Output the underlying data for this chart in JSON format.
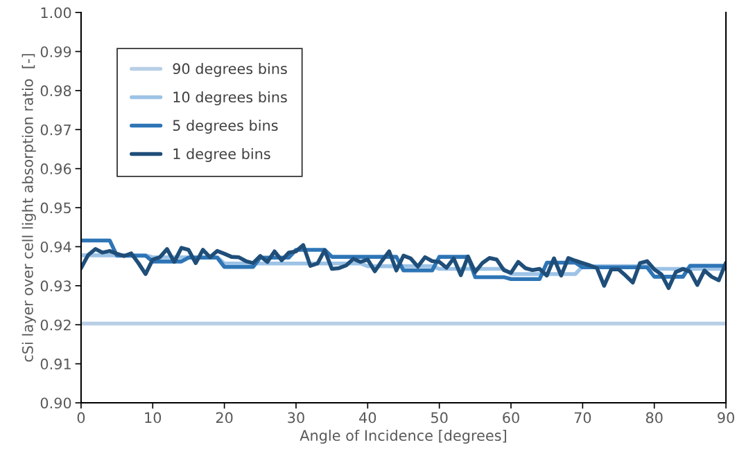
{
  "chart_data": {
    "type": "line",
    "xlabel": "Angle of Incidence [degrees]",
    "ylabel": "cSi layer over cell light absorption ratio  [-]",
    "xlim": [
      0,
      90
    ],
    "xticks": [
      0,
      10,
      20,
      30,
      40,
      50,
      60,
      70,
      80,
      90
    ],
    "ylim": [
      0.9,
      1.0
    ],
    "yticks": [
      {
        "value": 0.9,
        "label": "0.90"
      },
      {
        "value": 0.91,
        "label": "0.91"
      },
      {
        "value": 0.92,
        "label": "0.92"
      },
      {
        "value": 0.93,
        "label": "0.93"
      },
      {
        "value": 0.94,
        "label": "0.94"
      },
      {
        "value": 0.95,
        "label": "0.95"
      },
      {
        "value": 0.96,
        "label": "0.96"
      },
      {
        "value": 0.97,
        "label": "0.97"
      },
      {
        "value": 0.98,
        "label": "0.98"
      },
      {
        "value": 0.99,
        "label": "0.99"
      },
      {
        "value": 1.0,
        "label": "1.00"
      }
    ],
    "grid": false,
    "legend": "top left",
    "marker": "none",
    "line_style": "solid",
    "series": [
      {
        "name": "90 degrees bins",
        "color": "#b8cfe6",
        "x": [
          0,
          90
        ],
        "values": [
          0.9203,
          0.9203
        ]
      },
      {
        "name": "10 degrees bins",
        "color": "#9dc3e6",
        "x": [
          0,
          9,
          10,
          19,
          20,
          29,
          30,
          39,
          40,
          49,
          50,
          59,
          60,
          69,
          70,
          79,
          80,
          90
        ],
        "values": [
          0.9378,
          0.9378,
          0.9373,
          0.9373,
          0.9357,
          0.9357,
          0.9357,
          0.9357,
          0.935,
          0.935,
          0.9343,
          0.9343,
          0.933,
          0.933,
          0.935,
          0.935,
          0.9343,
          0.9343
        ]
      },
      {
        "name": "5 degrees bins",
        "color": "#2e75b6",
        "x": [
          0,
          4,
          5,
          9,
          10,
          14,
          15,
          19,
          20,
          24,
          25,
          29,
          30,
          34,
          35,
          39,
          40,
          44,
          45,
          49,
          50,
          54,
          55,
          59,
          60,
          64,
          65,
          69,
          70,
          74,
          75,
          79,
          80,
          84,
          85,
          90
        ],
        "values": [
          0.9416,
          0.9416,
          0.9377,
          0.9377,
          0.9362,
          0.9362,
          0.9372,
          0.9372,
          0.9348,
          0.9348,
          0.9372,
          0.9372,
          0.9392,
          0.9392,
          0.9374,
          0.9374,
          0.9374,
          0.9374,
          0.9339,
          0.9339,
          0.9374,
          0.9374,
          0.9322,
          0.9322,
          0.9317,
          0.9317,
          0.9359,
          0.9359,
          0.9347,
          0.9347,
          0.9347,
          0.9347,
          0.9323,
          0.9323,
          0.9351,
          0.9351
        ]
      },
      {
        "name": "1 degree bins",
        "color": "#1f4e79",
        "x": [
          0,
          1,
          2,
          3,
          4,
          5,
          6,
          7,
          8,
          9,
          10,
          11,
          12,
          13,
          14,
          15,
          16,
          17,
          18,
          19,
          20,
          21,
          22,
          23,
          24,
          25,
          26,
          27,
          28,
          29,
          30,
          31,
          32,
          33,
          34,
          35,
          36,
          37,
          38,
          39,
          40,
          41,
          42,
          43,
          44,
          45,
          46,
          47,
          48,
          49,
          50,
          51,
          52,
          53,
          54,
          55,
          56,
          57,
          58,
          59,
          60,
          61,
          62,
          63,
          64,
          65,
          66,
          67,
          68,
          69,
          70,
          71,
          72,
          73,
          74,
          75,
          76,
          77,
          78,
          79,
          80,
          81,
          82,
          83,
          84,
          85,
          86,
          87,
          88,
          89,
          90
        ],
        "values": [
          0.9345,
          0.9379,
          0.9394,
          0.9385,
          0.9389,
          0.9382,
          0.9376,
          0.9383,
          0.9358,
          0.933,
          0.9367,
          0.9373,
          0.9394,
          0.9361,
          0.9397,
          0.9392,
          0.9358,
          0.9392,
          0.9373,
          0.9389,
          0.9382,
          0.9374,
          0.9373,
          0.9363,
          0.9358,
          0.9376,
          0.9361,
          0.9388,
          0.9365,
          0.9385,
          0.9388,
          0.9404,
          0.9351,
          0.9357,
          0.9391,
          0.9343,
          0.9345,
          0.9352,
          0.9369,
          0.9361,
          0.9367,
          0.9337,
          0.9364,
          0.9388,
          0.9339,
          0.9377,
          0.937,
          0.9349,
          0.9373,
          0.9363,
          0.9361,
          0.9346,
          0.937,
          0.9327,
          0.9375,
          0.9335,
          0.9358,
          0.9371,
          0.9367,
          0.934,
          0.9333,
          0.9361,
          0.9345,
          0.934,
          0.9343,
          0.9326,
          0.937,
          0.9326,
          0.9371,
          0.9364,
          0.9358,
          0.9352,
          0.9345,
          0.93,
          0.9342,
          0.9342,
          0.9326,
          0.9308,
          0.9358,
          0.9363,
          0.9342,
          0.9329,
          0.9294,
          0.9335,
          0.9343,
          0.9336,
          0.9302,
          0.9339,
          0.9323,
          0.9314,
          0.9359
        ]
      }
    ]
  }
}
